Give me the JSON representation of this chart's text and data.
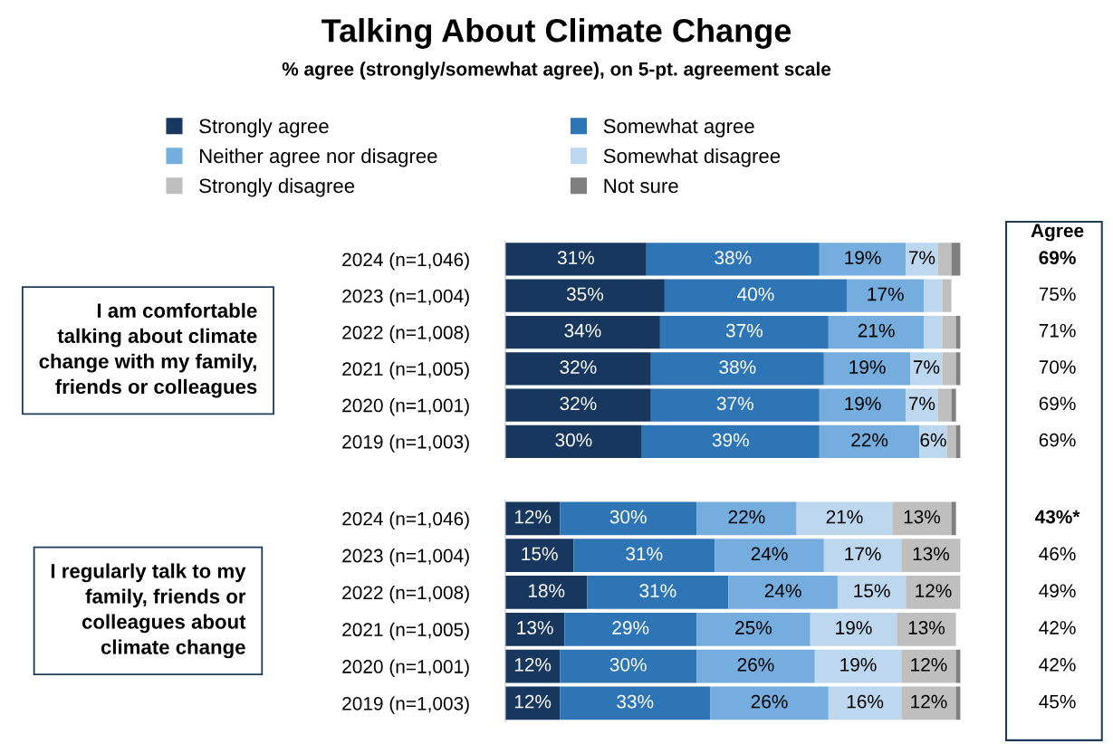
{
  "chart_data": [
    {
      "type": "bar",
      "orientation": "horizontal",
      "stacked": true,
      "title": "Talking About Climate Change",
      "subtitle": "% agree (strongly/somewhat agree), on 5-pt. agreement scale",
      "ylabel": "I am comfortable\ntalking about climate\nchange with my family,\nfriends or colleagues",
      "categories": [
        "2024 (n=1,046)",
        "2023 (n=1,004)",
        "2022 (n=1,008)",
        "2021 (n=1,005)",
        "2020 (n=1,001)",
        "2019 (n=1,003)"
      ],
      "xlim": [
        0,
        100
      ],
      "tick_labels": "y",
      "grid": false,
      "legend": "top",
      "series": [
        {
          "name": "Strongly agree",
          "color": "#17375e",
          "values": [
            31,
            35,
            34,
            32,
            32,
            30
          ],
          "value_labels": [
            "31%",
            "35%",
            "34%",
            "32%",
            "32%",
            "30%"
          ]
        },
        {
          "name": "Somewhat agree",
          "color": "#2e75b6",
          "values": [
            38,
            40,
            37,
            38,
            37,
            39
          ],
          "value_labels": [
            "38%",
            "40%",
            "37%",
            "38%",
            "37%",
            "39%"
          ]
        },
        {
          "name": "Neither agree nor disagree",
          "color": "#75aede",
          "values": [
            19,
            17,
            21,
            19,
            19,
            22
          ],
          "value_labels": [
            "19%",
            "17%",
            "21%",
            "19%",
            "19%",
            "22%"
          ]
        },
        {
          "name": "Somewhat disagree",
          "color": "#bdd7ee",
          "values": [
            7,
            4,
            4,
            7,
            7,
            6
          ],
          "value_labels": [
            "7%",
            null,
            null,
            "7%",
            "7%",
            "6%"
          ]
        },
        {
          "name": "Strongly disagree",
          "color": "#bfbfbf",
          "values": [
            3,
            2,
            3,
            3,
            3,
            2
          ],
          "value_labels": [
            null,
            null,
            null,
            null,
            null,
            null
          ]
        },
        {
          "name": "Not sure",
          "color": "#7f7f7f",
          "values": [
            2,
            null,
            1,
            1,
            1,
            1
          ],
          "value_labels": [
            null,
            null,
            null,
            null,
            null,
            null
          ]
        }
      ],
      "annotations": [
        "Agree",
        "69%",
        "75%",
        "71%",
        "70%",
        "69%",
        "69%"
      ]
    },
    {
      "type": "bar",
      "orientation": "horizontal",
      "stacked": true,
      "ylabel": "I regularly talk to my\nfamily, friends or\ncolleagues about\nclimate change",
      "categories": [
        "2024 (n=1,046)",
        "2023 (n=1,004)",
        "2022 (n=1,008)",
        "2021 (n=1,005)",
        "2020 (n=1,001)",
        "2019 (n=1,003)"
      ],
      "xlim": [
        0,
        100
      ],
      "tick_labels": "y",
      "grid": false,
      "series": [
        {
          "color": "#17375e",
          "values": [
            12,
            15,
            18,
            13,
            12,
            12
          ],
          "value_labels": [
            "12%",
            "15%",
            "18%",
            "13%",
            "12%",
            "12%"
          ]
        },
        {
          "color": "#2e75b6",
          "values": [
            30,
            31,
            31,
            29,
            30,
            33
          ],
          "value_labels": [
            "30%",
            "31%",
            "31%",
            "29%",
            "30%",
            "33%"
          ]
        },
        {
          "color": "#75aede",
          "values": [
            22,
            24,
            24,
            25,
            26,
            26
          ],
          "value_labels": [
            "22%",
            "24%",
            "24%",
            "25%",
            "26%",
            "26%"
          ]
        },
        {
          "color": "#bdd7ee",
          "values": [
            21,
            17,
            15,
            19,
            19,
            16
          ],
          "value_labels": [
            "21%",
            "17%",
            "15%",
            "19%",
            "19%",
            "16%"
          ]
        },
        {
          "color": "#bfbfbf",
          "values": [
            13,
            13,
            12,
            13,
            12,
            12
          ],
          "value_labels": [
            "13%",
            "13%",
            "12%",
            "13%",
            "12%",
            "12%"
          ]
        },
        {
          "color": "#7f7f7f",
          "values": [
            1,
            null,
            null,
            null,
            1,
            1
          ],
          "value_labels": [
            null,
            null,
            null,
            null,
            null,
            null
          ]
        }
      ],
      "annotations": [
        "43%*",
        "46%",
        "49%",
        "42%",
        "42%",
        "45%"
      ]
    }
  ]
}
